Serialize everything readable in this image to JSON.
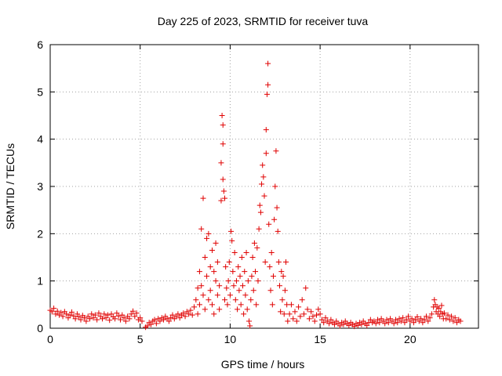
{
  "chart_data": {
    "type": "scatter",
    "title": "Day 225 of 2023, SRMTID for receiver tuva",
    "xlabel": "GPS time / hours",
    "ylabel": "SRMTID / TECUs",
    "xlim": [
      0,
      23.8
    ],
    "ylim": [
      0,
      6
    ],
    "x_ticks": [
      0,
      5,
      10,
      15,
      20
    ],
    "y_ticks": [
      0,
      1,
      2,
      3,
      4,
      5,
      6
    ],
    "grid": true,
    "marker": "plus",
    "series": [
      {
        "name": "SRMTID",
        "color": "#e00000",
        "points": [
          [
            0.0,
            0.38
          ],
          [
            0.1,
            0.35
          ],
          [
            0.2,
            0.42
          ],
          [
            0.3,
            0.3
          ],
          [
            0.4,
            0.36
          ],
          [
            0.5,
            0.28
          ],
          [
            0.6,
            0.33
          ],
          [
            0.7,
            0.25
          ],
          [
            0.8,
            0.35
          ],
          [
            0.9,
            0.3
          ],
          [
            1.0,
            0.22
          ],
          [
            1.1,
            0.28
          ],
          [
            1.2,
            0.34
          ],
          [
            1.3,
            0.26
          ],
          [
            1.4,
            0.2
          ],
          [
            1.5,
            0.3
          ],
          [
            1.6,
            0.24
          ],
          [
            1.7,
            0.18
          ],
          [
            1.8,
            0.27
          ],
          [
            1.9,
            0.22
          ],
          [
            2.0,
            0.15
          ],
          [
            2.1,
            0.25
          ],
          [
            2.2,
            0.2
          ],
          [
            2.3,
            0.3
          ],
          [
            2.4,
            0.22
          ],
          [
            2.5,
            0.28
          ],
          [
            2.6,
            0.18
          ],
          [
            2.7,
            0.32
          ],
          [
            2.8,
            0.25
          ],
          [
            2.9,
            0.2
          ],
          [
            3.0,
            0.3
          ],
          [
            3.1,
            0.22
          ],
          [
            3.2,
            0.28
          ],
          [
            3.3,
            0.17
          ],
          [
            3.4,
            0.3
          ],
          [
            3.5,
            0.24
          ],
          [
            3.6,
            0.2
          ],
          [
            3.7,
            0.32
          ],
          [
            3.8,
            0.26
          ],
          [
            3.9,
            0.18
          ],
          [
            4.0,
            0.28
          ],
          [
            4.1,
            0.22
          ],
          [
            4.2,
            0.15
          ],
          [
            4.3,
            0.25
          ],
          [
            4.4,
            0.2
          ],
          [
            4.5,
            0.3
          ],
          [
            4.6,
            0.36
          ],
          [
            4.7,
            0.25
          ],
          [
            4.8,
            0.32
          ],
          [
            4.9,
            0.18
          ],
          [
            5.0,
            0.22
          ],
          [
            5.1,
            0.15
          ],
          [
            5.3,
            0.02
          ],
          [
            5.4,
            0.05
          ],
          [
            5.5,
            0.12
          ],
          [
            5.6,
            0.08
          ],
          [
            5.7,
            0.15
          ],
          [
            5.8,
            0.18
          ],
          [
            5.9,
            0.1
          ],
          [
            6.0,
            0.2
          ],
          [
            6.1,
            0.15
          ],
          [
            6.2,
            0.22
          ],
          [
            6.3,
            0.18
          ],
          [
            6.4,
            0.25
          ],
          [
            6.5,
            0.2
          ],
          [
            6.6,
            0.15
          ],
          [
            6.7,
            0.22
          ],
          [
            6.8,
            0.28
          ],
          [
            6.9,
            0.2
          ],
          [
            7.0,
            0.25
          ],
          [
            7.1,
            0.3
          ],
          [
            7.2,
            0.22
          ],
          [
            7.3,
            0.28
          ],
          [
            7.4,
            0.32
          ],
          [
            7.5,
            0.25
          ],
          [
            7.6,
            0.35
          ],
          [
            7.7,
            0.3
          ],
          [
            7.8,
            0.38
          ],
          [
            7.9,
            0.28
          ],
          [
            8.0,
            0.45
          ],
          [
            8.1,
            0.6
          ],
          [
            8.2,
            0.3
          ],
          [
            8.2,
            0.85
          ],
          [
            8.3,
            0.5
          ],
          [
            8.3,
            1.2
          ],
          [
            8.4,
            0.9
          ],
          [
            8.4,
            2.1
          ],
          [
            8.5,
            2.75
          ],
          [
            8.5,
            0.7
          ],
          [
            8.6,
            1.5
          ],
          [
            8.6,
            0.4
          ],
          [
            8.7,
            1.1
          ],
          [
            8.7,
            1.9
          ],
          [
            8.8,
            0.6
          ],
          [
            8.8,
            2.0
          ],
          [
            8.9,
            1.3
          ],
          [
            8.9,
            0.8
          ],
          [
            9.0,
            1.65
          ],
          [
            9.0,
            0.5
          ],
          [
            9.1,
            1.2
          ],
          [
            9.1,
            0.3
          ],
          [
            9.2,
            1.0
          ],
          [
            9.2,
            1.8
          ],
          [
            9.3,
            0.7
          ],
          [
            9.3,
            1.4
          ],
          [
            9.4,
            0.9
          ],
          [
            9.4,
            0.4
          ],
          [
            9.5,
            2.7
          ],
          [
            9.5,
            3.5
          ],
          [
            9.55,
            4.5
          ],
          [
            9.6,
            4.3
          ],
          [
            9.6,
            3.9
          ],
          [
            9.6,
            3.15
          ],
          [
            9.65,
            2.9
          ],
          [
            9.7,
            2.75
          ],
          [
            9.7,
            0.6
          ],
          [
            9.75,
            1.3
          ],
          [
            9.8,
            0.85
          ],
          [
            9.85,
            0.5
          ],
          [
            9.9,
            1.0
          ],
          [
            9.95,
            1.4
          ],
          [
            10.0,
            0.7
          ],
          [
            10.05,
            2.05
          ],
          [
            10.1,
            1.85
          ],
          [
            10.15,
            1.2
          ],
          [
            10.2,
            0.9
          ],
          [
            10.25,
            1.6
          ],
          [
            10.3,
            0.6
          ],
          [
            10.35,
            1.0
          ],
          [
            10.4,
            0.4
          ],
          [
            10.45,
            1.3
          ],
          [
            10.5,
            0.8
          ],
          [
            10.55,
            1.1
          ],
          [
            10.6,
            0.5
          ],
          [
            10.65,
            1.5
          ],
          [
            10.7,
            0.9
          ],
          [
            10.75,
            0.3
          ],
          [
            10.8,
            1.2
          ],
          [
            10.85,
            0.7
          ],
          [
            10.9,
            1.6
          ],
          [
            10.95,
            0.4
          ],
          [
            11.0,
            1.0
          ],
          [
            11.05,
            0.15
          ],
          [
            11.1,
            0.05
          ],
          [
            11.15,
            0.6
          ],
          [
            11.2,
            1.1
          ],
          [
            11.25,
            1.5
          ],
          [
            11.3,
            0.8
          ],
          [
            11.35,
            1.8
          ],
          [
            11.4,
            1.2
          ],
          [
            11.45,
            0.5
          ],
          [
            11.5,
            1.7
          ],
          [
            11.55,
            1.0
          ],
          [
            11.6,
            2.1
          ],
          [
            11.65,
            2.6
          ],
          [
            11.7,
            2.45
          ],
          [
            11.75,
            3.05
          ],
          [
            11.8,
            3.45
          ],
          [
            11.85,
            3.2
          ],
          [
            11.9,
            2.8
          ],
          [
            11.95,
            1.4
          ],
          [
            12.0,
            3.7
          ],
          [
            12.0,
            4.2
          ],
          [
            12.05,
            4.95
          ],
          [
            12.1,
            5.15
          ],
          [
            12.1,
            5.6
          ],
          [
            12.15,
            2.2
          ],
          [
            12.2,
            1.3
          ],
          [
            12.25,
            0.8
          ],
          [
            12.3,
            1.6
          ],
          [
            12.35,
            0.5
          ],
          [
            12.4,
            1.1
          ],
          [
            12.45,
            2.3
          ],
          [
            12.5,
            3.0
          ],
          [
            12.55,
            3.75
          ],
          [
            12.6,
            2.55
          ],
          [
            12.65,
            2.05
          ],
          [
            12.7,
            1.4
          ],
          [
            12.75,
            0.9
          ],
          [
            12.8,
            0.35
          ],
          [
            12.85,
            1.2
          ],
          [
            12.9,
            0.6
          ],
          [
            12.95,
            1.1
          ],
          [
            13.0,
            0.3
          ],
          [
            13.05,
            0.8
          ],
          [
            13.1,
            1.4
          ],
          [
            13.15,
            0.5
          ],
          [
            13.2,
            0.15
          ],
          [
            13.3,
            0.3
          ],
          [
            13.4,
            0.5
          ],
          [
            13.5,
            0.2
          ],
          [
            13.6,
            0.35
          ],
          [
            13.7,
            0.15
          ],
          [
            13.8,
            0.45
          ],
          [
            13.9,
            0.25
          ],
          [
            14.0,
            0.6
          ],
          [
            14.1,
            0.3
          ],
          [
            14.2,
            0.85
          ],
          [
            14.3,
            0.4
          ],
          [
            14.4,
            0.2
          ],
          [
            14.5,
            0.35
          ],
          [
            14.6,
            0.25
          ],
          [
            14.7,
            0.15
          ],
          [
            14.8,
            0.28
          ],
          [
            14.9,
            0.4
          ],
          [
            15.0,
            0.3
          ],
          [
            15.1,
            0.18
          ],
          [
            15.2,
            0.12
          ],
          [
            15.3,
            0.22
          ],
          [
            15.4,
            0.15
          ],
          [
            15.5,
            0.1
          ],
          [
            15.6,
            0.18
          ],
          [
            15.7,
            0.12
          ],
          [
            15.8,
            0.08
          ],
          [
            15.9,
            0.15
          ],
          [
            16.0,
            0.1
          ],
          [
            16.1,
            0.05
          ],
          [
            16.2,
            0.12
          ],
          [
            16.3,
            0.08
          ],
          [
            16.4,
            0.15
          ],
          [
            16.5,
            0.1
          ],
          [
            16.6,
            0.06
          ],
          [
            16.7,
            0.12
          ],
          [
            16.8,
            0.08
          ],
          [
            16.9,
            0.04
          ],
          [
            17.0,
            0.1
          ],
          [
            17.1,
            0.06
          ],
          [
            17.2,
            0.12
          ],
          [
            17.3,
            0.08
          ],
          [
            17.4,
            0.15
          ],
          [
            17.5,
            0.1
          ],
          [
            17.6,
            0.06
          ],
          [
            17.7,
            0.12
          ],
          [
            17.8,
            0.18
          ],
          [
            17.9,
            0.12
          ],
          [
            18.0,
            0.15
          ],
          [
            18.1,
            0.1
          ],
          [
            18.2,
            0.18
          ],
          [
            18.3,
            0.12
          ],
          [
            18.4,
            0.2
          ],
          [
            18.5,
            0.15
          ],
          [
            18.6,
            0.1
          ],
          [
            18.7,
            0.18
          ],
          [
            18.8,
            0.12
          ],
          [
            18.9,
            0.2
          ],
          [
            19.0,
            0.15
          ],
          [
            19.1,
            0.1
          ],
          [
            19.2,
            0.18
          ],
          [
            19.3,
            0.12
          ],
          [
            19.4,
            0.2
          ],
          [
            19.5,
            0.15
          ],
          [
            19.6,
            0.22
          ],
          [
            19.7,
            0.12
          ],
          [
            19.8,
            0.18
          ],
          [
            19.9,
            0.25
          ],
          [
            20.0,
            0.15
          ],
          [
            20.1,
            0.2
          ],
          [
            20.2,
            0.12
          ],
          [
            20.3,
            0.18
          ],
          [
            20.4,
            0.24
          ],
          [
            20.5,
            0.15
          ],
          [
            20.6,
            0.2
          ],
          [
            20.7,
            0.12
          ],
          [
            20.8,
            0.18
          ],
          [
            20.9,
            0.25
          ],
          [
            21.0,
            0.15
          ],
          [
            21.1,
            0.22
          ],
          [
            21.2,
            0.3
          ],
          [
            21.3,
            0.45
          ],
          [
            21.35,
            0.6
          ],
          [
            21.4,
            0.5
          ],
          [
            21.45,
            0.35
          ],
          [
            21.5,
            0.45
          ],
          [
            21.55,
            0.3
          ],
          [
            21.6,
            0.42
          ],
          [
            21.65,
            0.25
          ],
          [
            21.7,
            0.35
          ],
          [
            21.75,
            0.48
          ],
          [
            21.8,
            0.3
          ],
          [
            21.85,
            0.2
          ],
          [
            21.9,
            0.32
          ],
          [
            22.0,
            0.2
          ],
          [
            22.1,
            0.28
          ],
          [
            22.2,
            0.18
          ],
          [
            22.3,
            0.25
          ],
          [
            22.4,
            0.15
          ],
          [
            22.5,
            0.22
          ],
          [
            22.6,
            0.12
          ],
          [
            22.7,
            0.18
          ],
          [
            22.8,
            0.15
          ]
        ]
      }
    ]
  }
}
